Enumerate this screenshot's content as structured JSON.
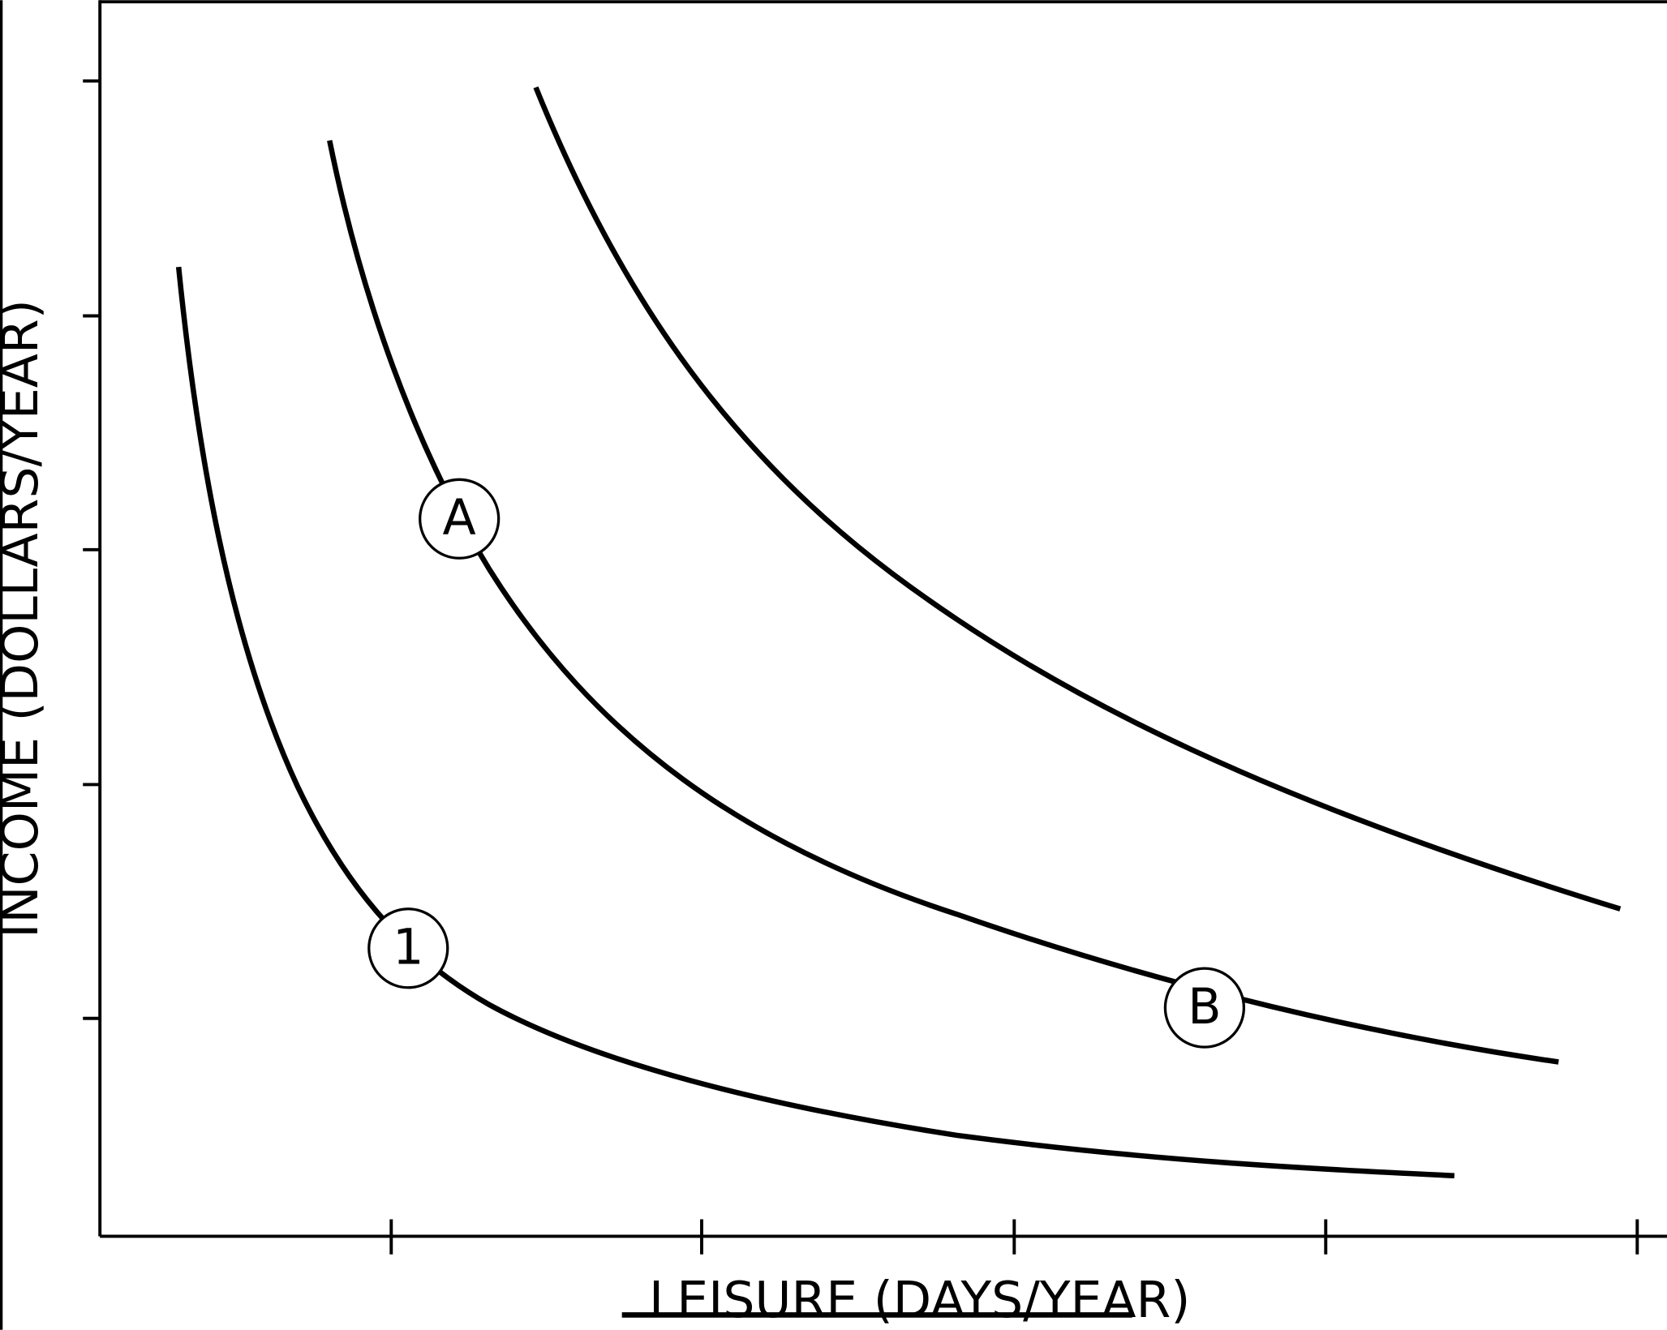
{
  "x_label": "LEISURE (DAYS/YEAR)",
  "y_label": "INCOME (DOLLARS/YEAR)",
  "points": [
    {
      "label": "A"
    },
    {
      "label": "1"
    },
    {
      "label": "B"
    }
  ]
}
